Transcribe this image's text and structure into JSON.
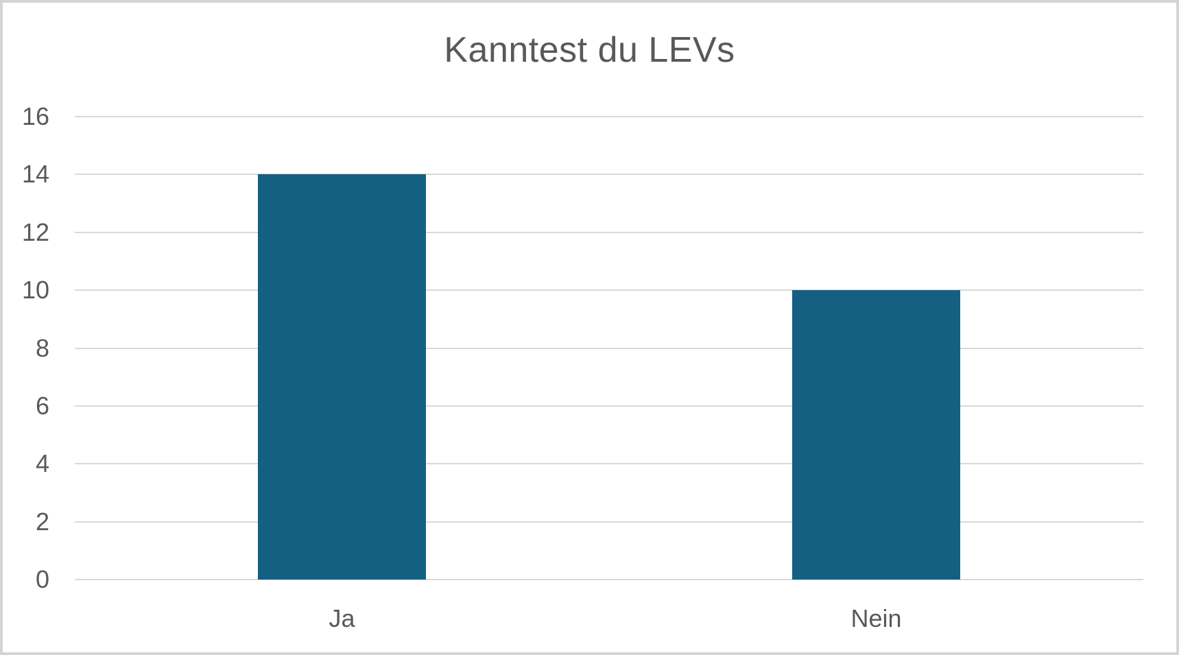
{
  "chart_data": {
    "type": "bar",
    "title": "Kanntest du LEVs",
    "categories": [
      "Ja",
      "Nein"
    ],
    "values": [
      14,
      10
    ],
    "xlabel": "",
    "ylabel": "",
    "ylim": [
      0,
      16
    ],
    "yticks": [
      0,
      2,
      4,
      6,
      8,
      10,
      12,
      14,
      16
    ],
    "grid": true,
    "legend": false,
    "bar_color": "#156082",
    "gridline_color": "#d9d9d9",
    "text_color": "#595959",
    "background_color": "#ffffff",
    "frame_border_color": "#d4d4d4"
  }
}
